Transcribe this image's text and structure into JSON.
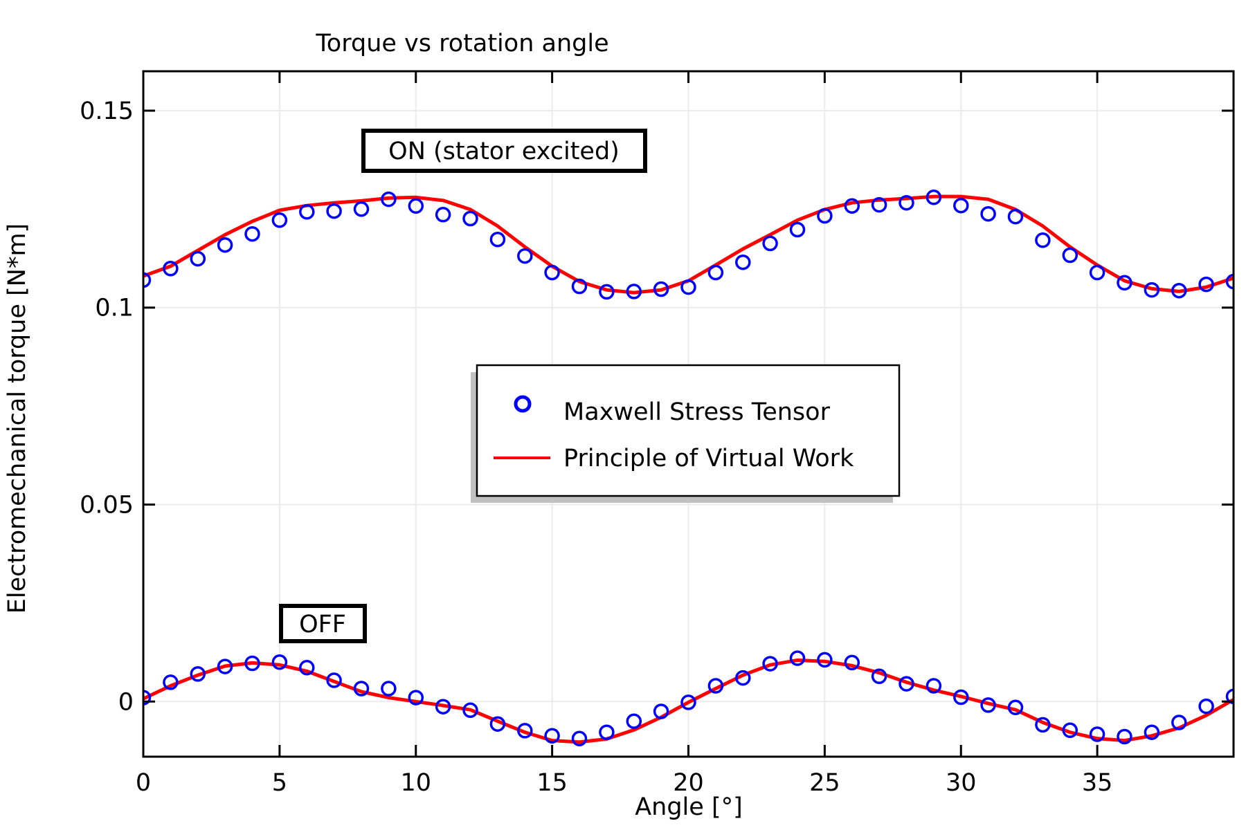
{
  "chart_data": {
    "type": "line",
    "title": "Torque vs rotation angle",
    "xlabel": "Angle [°]",
    "ylabel": "Electromechanical torque [N*m]",
    "xlim": [
      0,
      40
    ],
    "ylim": [
      -0.014,
      0.16
    ],
    "xticks": [
      0,
      5,
      10,
      15,
      20,
      25,
      30,
      35
    ],
    "xtick_labels": [
      "0",
      "5",
      "10",
      "15",
      "20",
      "25",
      "30",
      "35"
    ],
    "yticks": [
      0,
      0.05,
      0.1,
      0.15
    ],
    "ytick_labels": [
      "0",
      "0.05",
      "0.1",
      "0.15"
    ],
    "grid": true,
    "legend": {
      "placement": "center",
      "entries": [
        {
          "label": "Maxwell Stress Tensor",
          "marker": "circle",
          "color": "#0000ff"
        },
        {
          "label": "Principle of Virtual Work",
          "marker": "line",
          "color": "#ff0000"
        }
      ]
    },
    "annotations": [
      {
        "text": "ON (stator excited)",
        "anchor": "upper curve"
      },
      {
        "text": "OFF",
        "anchor": "lower curve"
      }
    ],
    "x": [
      0,
      1,
      2,
      3,
      4,
      5,
      6,
      7,
      8,
      9,
      10,
      11,
      12,
      13,
      14,
      15,
      16,
      17,
      18,
      19,
      20,
      21,
      22,
      23,
      24,
      25,
      26,
      27,
      28,
      29,
      30,
      31,
      32,
      33,
      34,
      35,
      36,
      37,
      38,
      39,
      40
    ],
    "series": [
      {
        "name": "Maxwell Stress Tensor",
        "case": "ON (stator excited)",
        "style": "circle",
        "color": "#0000ff",
        "values": [
          0.107,
          0.1099,
          0.1124,
          0.1159,
          0.1187,
          0.1222,
          0.1243,
          0.1245,
          0.125,
          0.1275,
          0.1258,
          0.1236,
          0.1226,
          0.1173,
          0.1131,
          0.1089,
          0.1054,
          0.104,
          0.1041,
          0.1047,
          0.1052,
          0.1089,
          0.1115,
          0.1163,
          0.1198,
          0.1233,
          0.1258,
          0.1261,
          0.1266,
          0.128,
          0.1259,
          0.1238,
          0.1231,
          0.1171,
          0.1133,
          0.1089,
          0.1063,
          0.1045,
          0.1043,
          0.1059,
          0.1066
        ]
      },
      {
        "name": "Principle of Virtual Work",
        "case": "ON (stator excited)",
        "style": "line",
        "color": "#ff0000",
        "values": [
          0.108,
          0.1105,
          0.1145,
          0.1185,
          0.1219,
          0.1247,
          0.1259,
          0.1266,
          0.1271,
          0.1278,
          0.128,
          0.1272,
          0.1249,
          0.1207,
          0.1154,
          0.1105,
          0.1066,
          0.1045,
          0.1038,
          0.1045,
          0.1068,
          0.1108,
          0.1149,
          0.1185,
          0.1222,
          0.1249,
          0.1266,
          0.1273,
          0.1277,
          0.1282,
          0.1282,
          0.1275,
          0.1249,
          0.1207,
          0.1154,
          0.1108,
          0.1068,
          0.1048,
          0.1041,
          0.1052,
          0.1075
        ]
      },
      {
        "name": "Maxwell Stress Tensor",
        "case": "OFF",
        "style": "circle",
        "color": "#0000ff",
        "values": [
          0.001,
          0.0049,
          0.007,
          0.0089,
          0.0097,
          0.01,
          0.0086,
          0.0054,
          0.0033,
          0.0033,
          0.001,
          -0.0013,
          -0.0022,
          -0.0057,
          -0.0074,
          -0.0087,
          -0.0094,
          -0.0078,
          -0.005,
          -0.0025,
          -0.0002,
          0.004,
          0.006,
          0.0096,
          0.011,
          0.0106,
          0.0099,
          0.0064,
          0.0045,
          0.004,
          0.0011,
          -0.0009,
          -0.0015,
          -0.0059,
          -0.0073,
          -0.0083,
          -0.0089,
          -0.0078,
          -0.0053,
          -0.0012,
          0.0013
        ]
      },
      {
        "name": "Principle of Virtual Work",
        "case": "OFF",
        "style": "line",
        "color": "#ff0000",
        "values": [
          0.0007,
          0.004,
          0.0067,
          0.009,
          0.0098,
          0.0093,
          0.0077,
          0.0051,
          0.0025,
          0.001,
          0.0,
          -0.001,
          -0.0021,
          -0.005,
          -0.0078,
          -0.0099,
          -0.0103,
          -0.0095,
          -0.0072,
          -0.004,
          -0.0002,
          0.0033,
          0.0067,
          0.0093,
          0.0105,
          0.0102,
          0.0091,
          0.0073,
          0.0049,
          0.0029,
          0.0013,
          -0.0005,
          -0.0021,
          -0.0053,
          -0.0078,
          -0.0094,
          -0.0099,
          -0.0087,
          -0.0067,
          -0.0035,
          0.0005
        ]
      }
    ]
  }
}
